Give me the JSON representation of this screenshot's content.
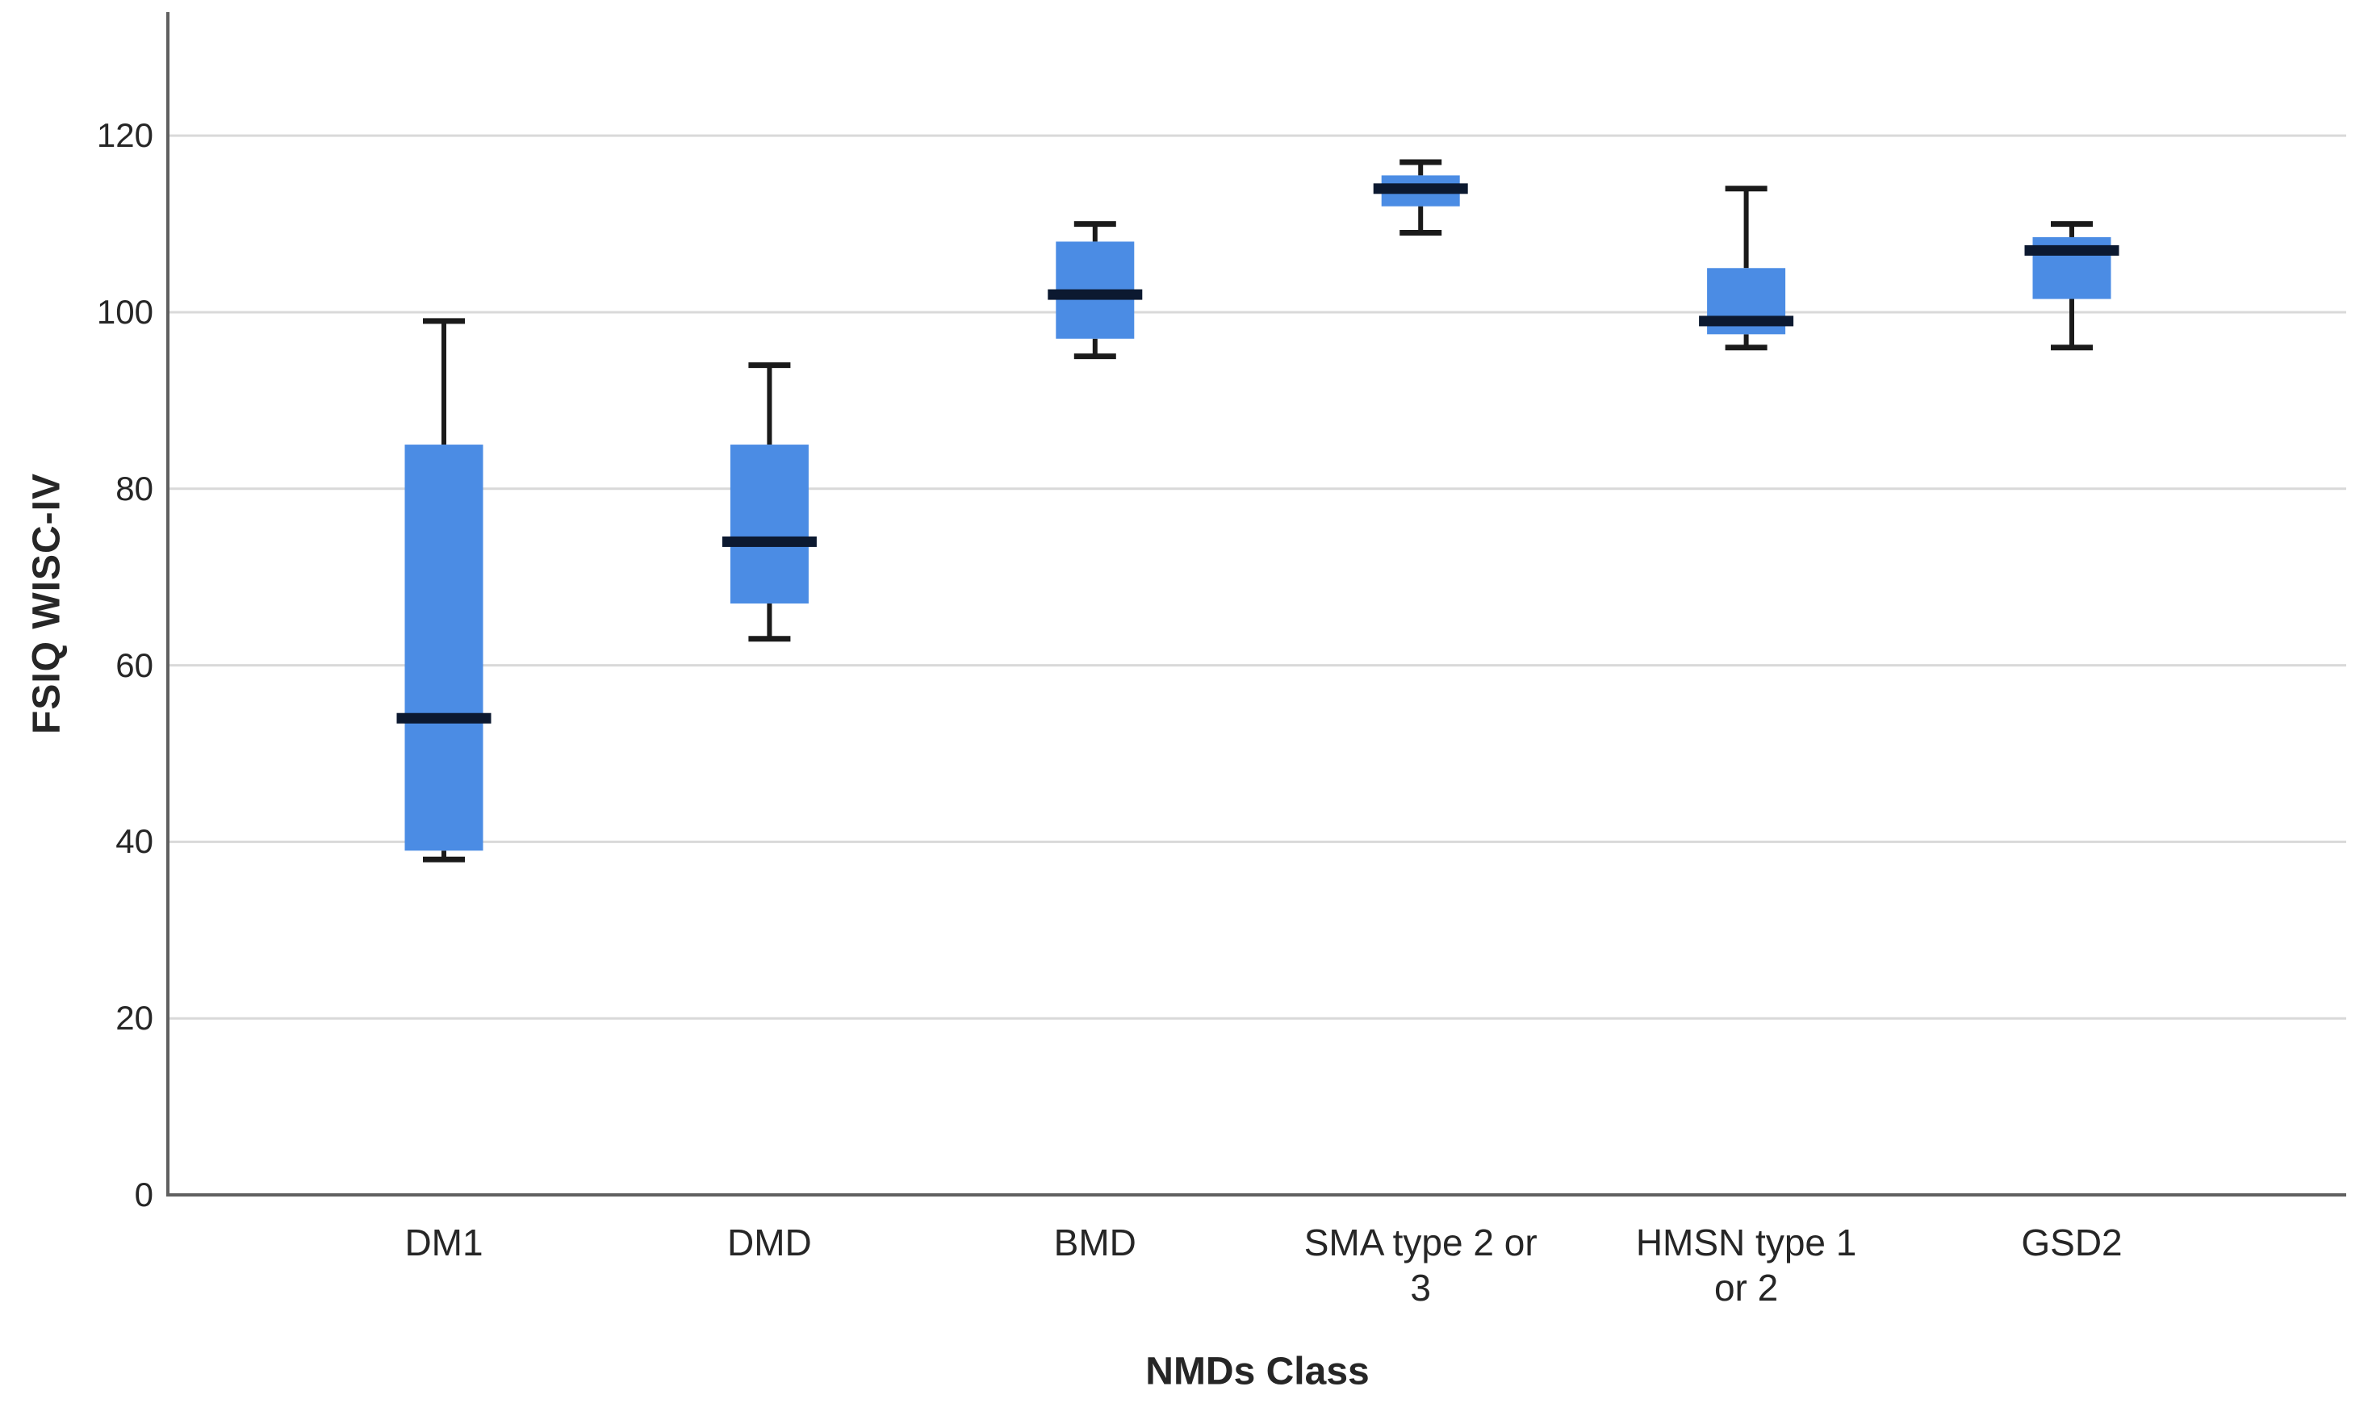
{
  "chart_data": {
    "type": "boxplot",
    "title": "",
    "xlabel": "NMDs Class",
    "ylabel": "FSIQ WISC-IV",
    "ylim": [
      0,
      134
    ],
    "yticks": [
      0,
      20,
      40,
      60,
      80,
      100,
      120
    ],
    "grid": "horizontal",
    "legend": "none",
    "categories": [
      "DM1",
      "DMD",
      "BMD",
      "SMA type 2 or 3",
      "HMSN type 1 or 2",
      "GSD2"
    ],
    "category_label_lines": [
      [
        "DM1"
      ],
      [
        "DMD"
      ],
      [
        "BMD"
      ],
      [
        "SMA type 2 or",
        "3"
      ],
      [
        "HMSN type 1",
        "or 2"
      ],
      [
        "GSD2"
      ]
    ],
    "boxes": [
      {
        "category": "DM1",
        "whisker_low": 38,
        "q1": 39,
        "median": 54,
        "q3": 85,
        "whisker_high": 99
      },
      {
        "category": "DMD",
        "whisker_low": 63,
        "q1": 67,
        "median": 74,
        "q3": 85,
        "whisker_high": 94
      },
      {
        "category": "BMD",
        "whisker_low": 95,
        "q1": 97,
        "median": 102,
        "q3": 108,
        "whisker_high": 110
      },
      {
        "category": "SMA type 2 or 3",
        "whisker_low": 109,
        "q1": 112,
        "median": 114,
        "q3": 115.5,
        "whisker_high": 117
      },
      {
        "category": "HMSN type 1 or 2",
        "whisker_low": 96,
        "q1": 97.5,
        "median": 99,
        "q3": 105,
        "whisker_high": 114
      },
      {
        "category": "GSD2",
        "whisker_low": 96,
        "q1": 101.5,
        "median": 107,
        "q3": 108.5,
        "whisker_high": 110
      }
    ],
    "colors": {
      "box_fill": "#4B8CE4",
      "median_line": "#0C1930",
      "whisker": "#1A1A1A",
      "gridline": "#D9D9D9",
      "axis_line": "#606060",
      "text": "#262626",
      "background": "#FFFFFF"
    }
  }
}
